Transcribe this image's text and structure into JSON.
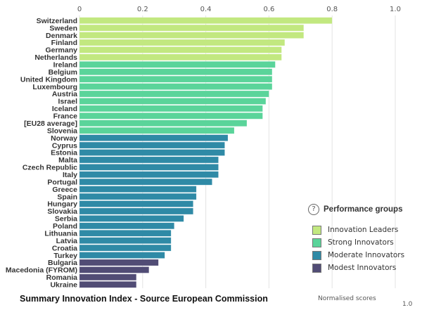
{
  "chart_data": {
    "type": "bar",
    "orientation": "horizontal",
    "x_ticks": [
      "0",
      "0.2",
      "0.4",
      "0.6",
      "0.8",
      "1.0"
    ],
    "xlim": [
      0,
      1.0
    ],
    "xlabel": "Normalised scores",
    "categories": [
      "Switzerland",
      "Sweden",
      "Denmark",
      "Finland",
      "Germany",
      "Netherlands",
      "Ireland",
      "Belgium",
      "United Kingdom",
      "Luxembourg",
      "Austria",
      "Israel",
      "Iceland",
      "France",
      "[EU28 average]",
      "Slovenia",
      "Norway",
      "Cyprus",
      "Estonia",
      "Malta",
      "Czech Republic",
      "Italy",
      "Portugal",
      "Greece",
      "Spain",
      "Hungary",
      "Slovakia",
      "Serbia",
      "Poland",
      "Lithuania",
      "Latvia",
      "Croatia",
      "Turkey",
      "Bulgaria",
      "Macedonia (FYROM)",
      "Romania",
      "Ukraine"
    ],
    "values": [
      0.8,
      0.71,
      0.71,
      0.65,
      0.64,
      0.64,
      0.62,
      0.61,
      0.61,
      0.61,
      0.6,
      0.59,
      0.58,
      0.58,
      0.53,
      0.49,
      0.47,
      0.46,
      0.46,
      0.44,
      0.44,
      0.44,
      0.42,
      0.37,
      0.37,
      0.36,
      0.36,
      0.33,
      0.3,
      0.29,
      0.29,
      0.29,
      0.27,
      0.25,
      0.22,
      0.18,
      0.18
    ],
    "groups": [
      0,
      0,
      0,
      0,
      0,
      0,
      1,
      1,
      1,
      1,
      1,
      1,
      1,
      1,
      1,
      1,
      2,
      2,
      2,
      2,
      2,
      2,
      2,
      2,
      2,
      2,
      2,
      2,
      2,
      2,
      2,
      2,
      2,
      3,
      3,
      3,
      3
    ],
    "grid": true,
    "legend_position": "bottom-right"
  },
  "legend": {
    "title": "Performance groups",
    "items": [
      {
        "label": "Innovation Leaders",
        "color": "#c2e880"
      },
      {
        "label": "Strong Innovators",
        "color": "#5ad49a"
      },
      {
        "label": "Moderate Innovators",
        "color": "#2f8aa6"
      },
      {
        "label": "Modest Innovators",
        "color": "#514c75"
      }
    ]
  },
  "caption": "Summary Innovation Index - Source European Commission",
  "footer": {
    "axis_label": "Normalised scores",
    "tick": "1.0"
  }
}
